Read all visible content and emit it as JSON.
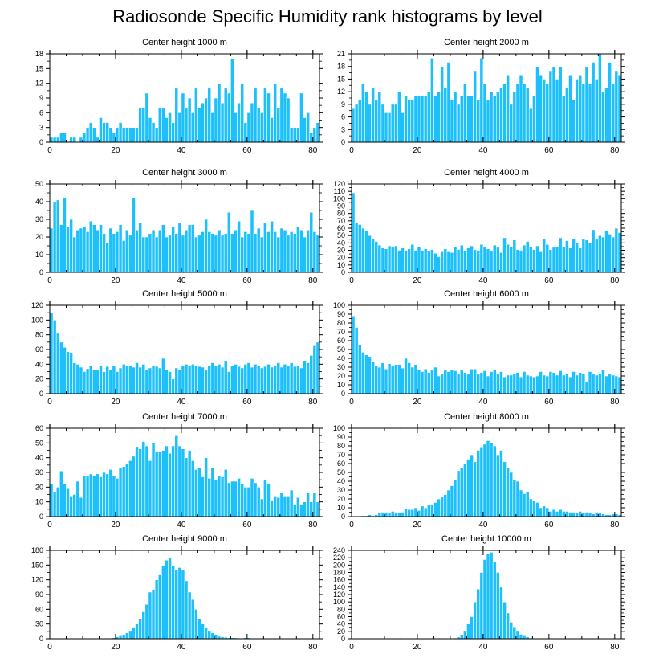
{
  "title": "Radiosonde Specific Humidity rank histograms by level",
  "colors": {
    "bar": "#1ec0fc",
    "bar_edge": "#ffffff",
    "axis": "#000000"
  },
  "chart_data": [
    {
      "type": "bar",
      "title": "Center height 1000 m",
      "xlim": [
        0,
        82
      ],
      "ylim": [
        0,
        18
      ],
      "xticks": [
        0,
        20,
        40,
        60,
        80
      ],
      "yticks": [
        0,
        3,
        6,
        9,
        12,
        15,
        18
      ],
      "x_start": 0,
      "values": [
        1,
        1,
        1,
        2,
        2,
        0,
        1,
        1,
        0,
        1,
        2,
        3,
        4,
        3,
        1,
        5,
        4,
        4,
        3,
        2,
        3,
        4,
        3,
        3,
        3,
        3,
        3,
        7,
        7,
        10,
        5,
        4,
        3,
        7,
        7,
        5,
        6,
        4,
        11,
        6,
        10,
        7,
        9,
        6,
        11,
        7,
        8,
        9,
        11,
        6,
        9,
        12,
        8,
        11,
        10,
        17,
        6,
        8,
        12,
        4,
        6,
        8,
        11,
        7,
        6,
        11,
        10,
        5,
        12,
        7,
        11,
        10,
        9,
        3,
        3,
        3,
        10,
        5,
        6,
        2,
        3,
        4
      ]
    },
    {
      "type": "bar",
      "title": "Center height 2000 m",
      "xlim": [
        0,
        82
      ],
      "ylim": [
        0,
        21
      ],
      "xticks": [
        0,
        20,
        40,
        60,
        80
      ],
      "yticks": [
        0,
        3,
        6,
        9,
        12,
        15,
        18,
        21
      ],
      "x_start": 0,
      "values": [
        8,
        9,
        10,
        14,
        12,
        9,
        13,
        10,
        12,
        9,
        7,
        7,
        9,
        9,
        12,
        7,
        11,
        10,
        10,
        11,
        11,
        11,
        11,
        12,
        20,
        11,
        12,
        18,
        13,
        19,
        10,
        12,
        9,
        11,
        14,
        11,
        11,
        17,
        10,
        20,
        14,
        10,
        12,
        11,
        12,
        13,
        14,
        16,
        9,
        12,
        14,
        16,
        14,
        13,
        8,
        11,
        18,
        16,
        15,
        14,
        17,
        18,
        15,
        18,
        11,
        13,
        16,
        10,
        15,
        16,
        14,
        18,
        14,
        19,
        15,
        21,
        12,
        13,
        19,
        14,
        17,
        16
      ]
    },
    {
      "type": "bar",
      "title": "Center height 3000 m",
      "xlim": [
        0,
        82
      ],
      "ylim": [
        0,
        50
      ],
      "xticks": [
        0,
        20,
        40,
        60,
        80
      ],
      "yticks": [
        0,
        10,
        20,
        30,
        40,
        50
      ],
      "x_start": 0,
      "values": [
        25,
        40,
        41,
        27,
        42,
        26,
        30,
        20,
        24,
        25,
        26,
        23,
        29,
        27,
        24,
        27,
        22,
        17,
        25,
        22,
        23,
        27,
        18,
        24,
        21,
        42,
        24,
        28,
        20,
        20,
        22,
        24,
        20,
        24,
        27,
        20,
        21,
        26,
        22,
        28,
        21,
        24,
        27,
        27,
        20,
        21,
        23,
        30,
        23,
        22,
        21,
        24,
        21,
        22,
        34,
        22,
        24,
        29,
        20,
        23,
        22,
        35,
        22,
        25,
        20,
        28,
        23,
        29,
        23,
        20,
        25,
        24,
        21,
        23,
        22,
        26,
        24,
        20,
        24,
        34,
        23,
        21
      ]
    },
    {
      "type": "bar",
      "title": "Center height 4000 m",
      "xlim": [
        0,
        82
      ],
      "ylim": [
        0,
        120
      ],
      "xticks": [
        0,
        20,
        40,
        60,
        80
      ],
      "yticks": [
        0,
        10,
        20,
        30,
        40,
        50,
        60,
        70,
        80,
        90,
        100,
        110,
        120
      ],
      "x_start": 0,
      "values": [
        108,
        68,
        65,
        60,
        57,
        50,
        45,
        42,
        37,
        33,
        32,
        36,
        35,
        36,
        30,
        33,
        30,
        32,
        38,
        30,
        35,
        30,
        32,
        29,
        31,
        26,
        21,
        28,
        32,
        28,
        27,
        35,
        31,
        37,
        29,
        33,
        36,
        31,
        30,
        38,
        35,
        32,
        29,
        37,
        34,
        27,
        47,
        38,
        35,
        44,
        31,
        30,
        37,
        42,
        35,
        31,
        36,
        28,
        45,
        38,
        31,
        34,
        35,
        47,
        35,
        43,
        33,
        46,
        40,
        33,
        45,
        44,
        40,
        58,
        45,
        50,
        48,
        57,
        52,
        48,
        60,
        54
      ]
    },
    {
      "type": "bar",
      "title": "Center height 5000 m",
      "xlim": [
        0,
        82
      ],
      "ylim": [
        0,
        120
      ],
      "xticks": [
        0,
        20,
        40,
        60,
        80
      ],
      "yticks": [
        0,
        20,
        40,
        60,
        80,
        100,
        120
      ],
      "x_start": 0,
      "values": [
        110,
        100,
        82,
        70,
        63,
        57,
        55,
        42,
        40,
        36,
        30,
        34,
        38,
        33,
        33,
        38,
        30,
        37,
        33,
        38,
        30,
        35,
        40,
        38,
        38,
        36,
        42,
        36,
        40,
        32,
        35,
        38,
        37,
        35,
        48,
        32,
        30,
        20,
        35,
        33,
        38,
        40,
        38,
        40,
        38,
        37,
        36,
        32,
        38,
        42,
        38,
        40,
        36,
        45,
        30,
        38,
        40,
        37,
        35,
        40,
        42,
        36,
        40,
        38,
        35,
        37,
        40,
        36,
        38,
        42,
        36,
        40,
        38,
        42,
        37,
        38,
        35,
        45,
        42,
        52,
        65,
        70
      ]
    },
    {
      "type": "bar",
      "title": "Center height 6000 m",
      "xlim": [
        0,
        82
      ],
      "ylim": [
        0,
        100
      ],
      "xticks": [
        0,
        20,
        40,
        60,
        80
      ],
      "yticks": [
        0,
        10,
        20,
        30,
        40,
        50,
        60,
        70,
        80,
        90,
        100
      ],
      "x_start": 0,
      "values": [
        88,
        75,
        55,
        47,
        44,
        42,
        36,
        32,
        30,
        35,
        28,
        34,
        32,
        33,
        33,
        29,
        40,
        35,
        30,
        33,
        27,
        25,
        28,
        24,
        27,
        30,
        20,
        22,
        27,
        25,
        27,
        26,
        22,
        27,
        24,
        22,
        28,
        28,
        23,
        24,
        26,
        20,
        25,
        27,
        22,
        25,
        19,
        21,
        21,
        23,
        24,
        19,
        25,
        21,
        20,
        19,
        20,
        25,
        21,
        20,
        25,
        24,
        21,
        26,
        21,
        23,
        19,
        25,
        21,
        24,
        23,
        14,
        25,
        22,
        21,
        23,
        27,
        20,
        22,
        21,
        20,
        19
      ]
    },
    {
      "type": "bar",
      "title": "Center height 7000 m",
      "xlim": [
        0,
        82
      ],
      "ylim": [
        0,
        60
      ],
      "xticks": [
        0,
        20,
        40,
        60,
        80
      ],
      "yticks": [
        0,
        10,
        20,
        30,
        40,
        50,
        60
      ],
      "x_start": 0,
      "values": [
        22,
        17,
        20,
        31,
        22,
        19,
        14,
        15,
        24,
        13,
        28,
        28,
        29,
        28,
        29,
        27,
        30,
        29,
        32,
        28,
        26,
        33,
        34,
        36,
        38,
        41,
        47,
        46,
        51,
        48,
        38,
        50,
        44,
        44,
        45,
        48,
        43,
        48,
        55,
        48,
        46,
        40,
        45,
        38,
        32,
        33,
        27,
        40,
        26,
        33,
        25,
        28,
        27,
        32,
        23,
        24,
        24,
        26,
        22,
        20,
        20,
        26,
        23,
        20,
        12,
        25,
        22,
        11,
        14,
        13,
        16,
        14,
        14,
        18,
        8,
        13,
        8,
        10,
        16,
        10,
        16,
        10
      ]
    },
    {
      "type": "bar",
      "title": "Center height 8000 m",
      "xlim": [
        0,
        82
      ],
      "ylim": [
        0,
        100
      ],
      "xticks": [
        0,
        20,
        40,
        60,
        80
      ],
      "yticks": [
        0,
        10,
        20,
        30,
        40,
        50,
        60,
        70,
        80,
        90,
        100
      ],
      "x_start": 0,
      "values": [
        0,
        0,
        0,
        1,
        1,
        2,
        1,
        2,
        4,
        5,
        5,
        4,
        6,
        5,
        4,
        5,
        9,
        8,
        8,
        10,
        7,
        12,
        10,
        13,
        14,
        16,
        20,
        22,
        25,
        30,
        35,
        42,
        52,
        55,
        60,
        65,
        70,
        62,
        75,
        78,
        82,
        86,
        84,
        80,
        70,
        75,
        62,
        55,
        50,
        42,
        40,
        30,
        26,
        28,
        20,
        18,
        16,
        10,
        12,
        10,
        6,
        8,
        6,
        8,
        6,
        6,
        5,
        5,
        4,
        6,
        4,
        5,
        4,
        3,
        5,
        4,
        3,
        2,
        2,
        3,
        3,
        2
      ]
    },
    {
      "type": "bar",
      "title": "Center height 9000 m",
      "xlim": [
        0,
        82
      ],
      "ylim": [
        0,
        180
      ],
      "xticks": [
        0,
        20,
        40,
        60,
        80
      ],
      "yticks": [
        0,
        30,
        60,
        90,
        120,
        150,
        180
      ],
      "x_start": 0,
      "values": [
        0,
        0,
        0,
        0,
        0,
        0,
        0,
        0,
        0,
        0,
        1,
        0,
        0,
        0,
        0,
        0,
        1,
        0,
        1,
        2,
        4,
        6,
        8,
        12,
        15,
        22,
        30,
        40,
        55,
        70,
        95,
        100,
        120,
        130,
        148,
        160,
        165,
        148,
        140,
        145,
        140,
        118,
        95,
        80,
        60,
        40,
        30,
        22,
        15,
        12,
        8,
        5,
        4,
        3,
        2,
        2,
        2,
        1,
        1,
        2,
        2,
        1,
        1,
        1,
        1,
        1,
        0,
        0,
        1,
        0,
        0,
        1,
        0,
        0,
        0,
        0,
        0,
        0,
        0,
        0,
        0,
        0
      ]
    },
    {
      "type": "bar",
      "title": "Center height 10000 m",
      "xlim": [
        0,
        82
      ],
      "ylim": [
        0,
        240
      ],
      "xticks": [
        0,
        20,
        40,
        60,
        80
      ],
      "yticks": [
        0,
        20,
        40,
        60,
        80,
        100,
        120,
        140,
        160,
        180,
        200,
        220,
        240
      ],
      "x_start": 0,
      "values": [
        0,
        0,
        0,
        0,
        0,
        0,
        0,
        0,
        0,
        0,
        0,
        0,
        0,
        0,
        0,
        0,
        0,
        0,
        0,
        0,
        0,
        0,
        0,
        0,
        0,
        0,
        0,
        0,
        0,
        0,
        1,
        2,
        5,
        10,
        20,
        40,
        60,
        100,
        135,
        180,
        215,
        230,
        235,
        210,
        180,
        140,
        100,
        70,
        45,
        30,
        20,
        12,
        8,
        5,
        2,
        1,
        0,
        0,
        0,
        0,
        0,
        0,
        0,
        0,
        0,
        0,
        0,
        0,
        0,
        0,
        0,
        0,
        0,
        0,
        0,
        0,
        0,
        0,
        0,
        0,
        0,
        0
      ]
    }
  ]
}
